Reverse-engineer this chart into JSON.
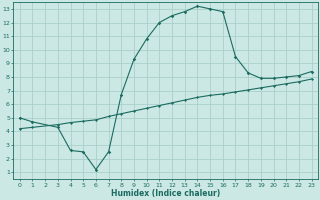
{
  "xlabel": "Humidex (Indice chaleur)",
  "background_color": "#cce8e4",
  "grid_color": "#aacfcb",
  "line_color": "#1a6b60",
  "xlim": [
    -0.5,
    23.5
  ],
  "ylim": [
    0.5,
    13.5
  ],
  "xticks": [
    0,
    1,
    2,
    3,
    4,
    5,
    6,
    7,
    8,
    9,
    10,
    11,
    12,
    13,
    14,
    15,
    16,
    17,
    18,
    19,
    20,
    21,
    22,
    23
  ],
  "yticks": [
    1,
    2,
    3,
    4,
    5,
    6,
    7,
    8,
    9,
    10,
    11,
    12,
    13
  ],
  "curve1_x": [
    0,
    1,
    3,
    4,
    5,
    6,
    7,
    8,
    9,
    10,
    11,
    12,
    13,
    14,
    15,
    16,
    17,
    18,
    19,
    20,
    21,
    22,
    23
  ],
  "curve1_y": [
    5.0,
    4.7,
    4.3,
    2.6,
    2.5,
    1.2,
    2.5,
    6.7,
    9.3,
    10.8,
    12.0,
    12.5,
    12.8,
    13.2,
    13.0,
    12.8,
    9.5,
    8.3,
    7.9,
    7.9,
    8.0,
    8.1,
    8.4
  ],
  "curve2_x": [
    0,
    1,
    3,
    4,
    5,
    6,
    7,
    8,
    9,
    10,
    11,
    12,
    13,
    14,
    15,
    16,
    17,
    18,
    19,
    20,
    21,
    22,
    23
  ],
  "curve2_y": [
    4.2,
    4.3,
    4.5,
    4.65,
    4.75,
    4.85,
    5.1,
    5.3,
    5.5,
    5.7,
    5.9,
    6.1,
    6.3,
    6.5,
    6.65,
    6.75,
    6.9,
    7.05,
    7.2,
    7.35,
    7.5,
    7.65,
    7.85
  ]
}
